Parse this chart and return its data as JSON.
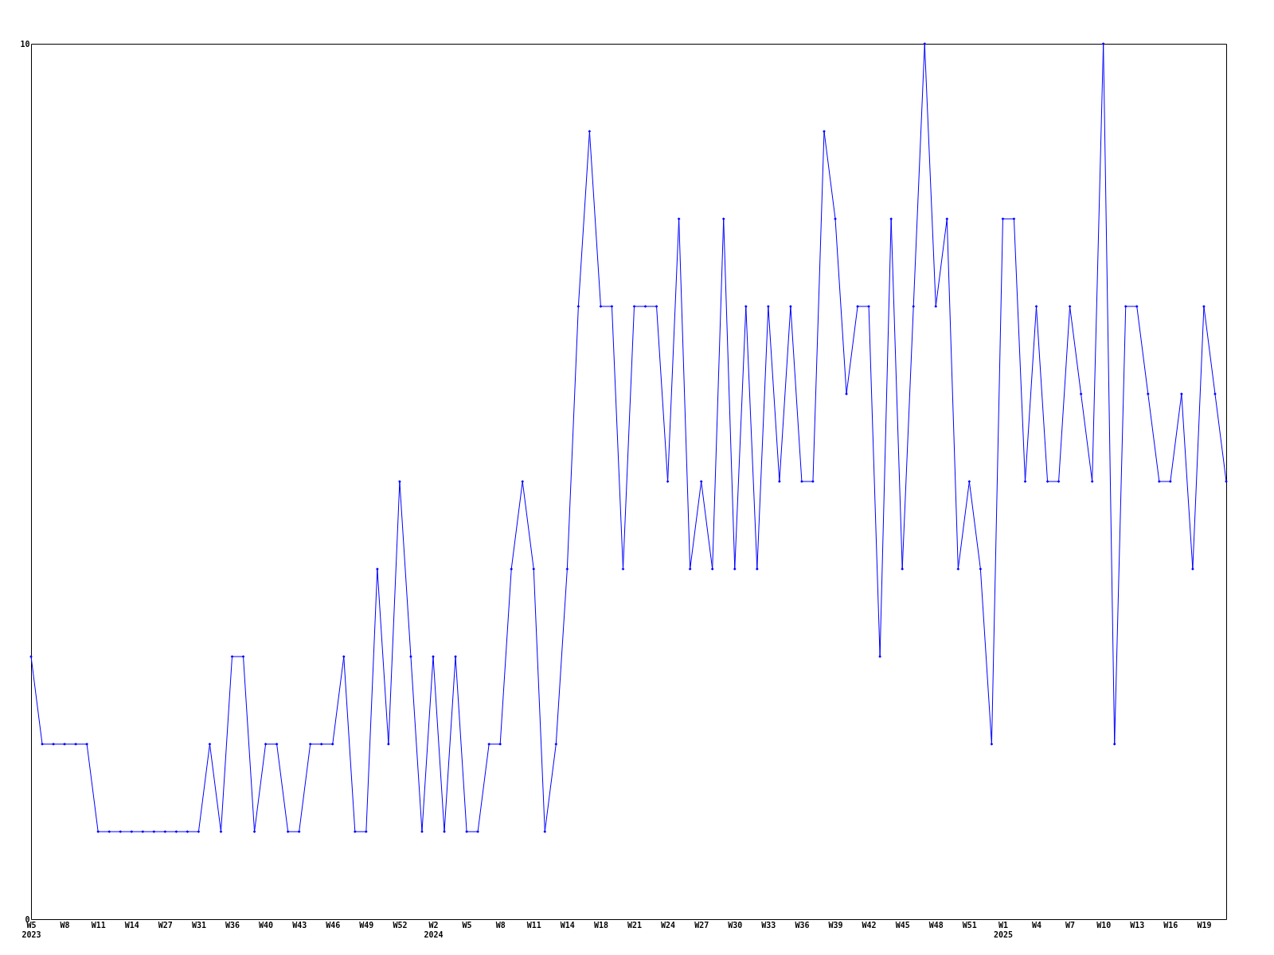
{
  "chart_data": {
    "type": "line",
    "categories": [
      "W5\n2023",
      null,
      null,
      "W8",
      null,
      null,
      "W11",
      null,
      null,
      "W14",
      null,
      null,
      "W27",
      null,
      null,
      "W31",
      null,
      null,
      "W36",
      null,
      null,
      "W40",
      null,
      null,
      "W43",
      null,
      null,
      "W46",
      null,
      null,
      "W49",
      null,
      null,
      "W52",
      null,
      null,
      "W2\n2024",
      null,
      null,
      "W5",
      null,
      null,
      "W8",
      null,
      null,
      "W11",
      null,
      null,
      "W14",
      null,
      null,
      "W18",
      null,
      null,
      "W21",
      null,
      null,
      "W24",
      null,
      null,
      "W27",
      null,
      null,
      "W30",
      null,
      null,
      "W33",
      null,
      null,
      "W36",
      null,
      null,
      "W39",
      null,
      null,
      "W42",
      null,
      null,
      "W45",
      null,
      null,
      "W48",
      null,
      null,
      "W51",
      null,
      null,
      "W1\n2025",
      null,
      null,
      "W4",
      null,
      null,
      "W7",
      null,
      null,
      "W10",
      null,
      null,
      "W13",
      null,
      null,
      "W16",
      null,
      null,
      "W19",
      null,
      null
    ],
    "series": [
      {
        "color": "#0000ff",
        "values": [
          3,
          2,
          2,
          2,
          2,
          2,
          1,
          1,
          1,
          1,
          1,
          1,
          1,
          1,
          1,
          1,
          2,
          1,
          3,
          3,
          1,
          2,
          2,
          1,
          1,
          2,
          2,
          2,
          3,
          1,
          1,
          4,
          2,
          5,
          3,
          1,
          3,
          1,
          3,
          1,
          1,
          2,
          2,
          4,
          5,
          4,
          1,
          2,
          4,
          7,
          9,
          7,
          7,
          4,
          7,
          7,
          7,
          5,
          8,
          4,
          5,
          4,
          8,
          4,
          7,
          4,
          7,
          5,
          7,
          5,
          5,
          9,
          8,
          6,
          7,
          7,
          3,
          8,
          4,
          7,
          10,
          7,
          8,
          4,
          5,
          4,
          2,
          8,
          8,
          5,
          7,
          5,
          5,
          7,
          6,
          5,
          10,
          2,
          7,
          7,
          6,
          5,
          5,
          6,
          4,
          7,
          6,
          5
        ]
      }
    ],
    "ylim": [
      0,
      10
    ],
    "yticks": [
      0,
      10
    ],
    "grid": false,
    "marker": "diamond",
    "line_style": "solid"
  }
}
